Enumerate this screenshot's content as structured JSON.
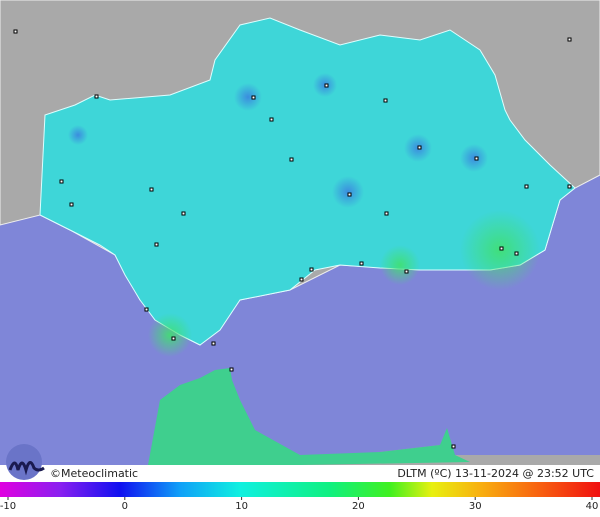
{
  "map": {
    "brand": "©Meteoclimatic",
    "caption": "DLTM (ºC)  13-11-2024 @ 23:52 UTC",
    "colorbar": {
      "lim": [
        -10,
        40
      ],
      "ticks": [
        -10,
        0,
        10,
        20,
        30,
        40
      ]
    }
  }
}
